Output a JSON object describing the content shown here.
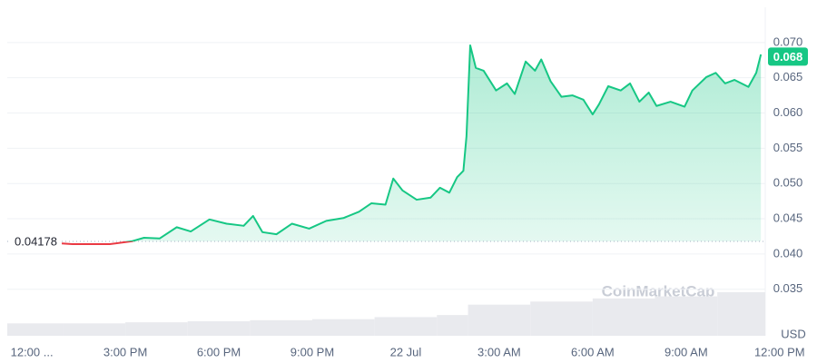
{
  "chart_data": {
    "type": "line",
    "x": [
      0.96,
      1.3,
      1.9,
      2.5,
      3.2,
      3.6,
      4.1,
      4.65,
      5.1,
      5.7,
      6.25,
      6.8,
      7.1,
      7.4,
      7.85,
      8.35,
      8.9,
      9.45,
      10.0,
      10.5,
      10.9,
      11.35,
      11.6,
      11.9,
      12.35,
      12.8,
      13.1,
      13.4,
      13.65,
      13.85,
      13.95,
      14.07,
      14.25,
      14.5,
      14.9,
      15.25,
      15.5,
      15.85,
      16.15,
      16.35,
      16.65,
      17.0,
      17.35,
      17.7,
      18.0,
      18.2,
      18.5,
      18.9,
      19.2,
      19.5,
      19.8,
      20.05,
      20.5,
      20.95,
      21.2,
      21.65,
      21.95,
      22.25,
      22.55,
      23.0,
      23.25,
      23.4
    ],
    "values": [
      0.0415,
      0.0414,
      0.0414,
      0.0414,
      0.0418,
      0.0423,
      0.0422,
      0.0438,
      0.0432,
      0.0449,
      0.0443,
      0.044,
      0.0454,
      0.0431,
      0.0428,
      0.0443,
      0.0436,
      0.0447,
      0.0451,
      0.046,
      0.0472,
      0.047,
      0.0507,
      0.049,
      0.0477,
      0.048,
      0.0494,
      0.0487,
      0.0509,
      0.0518,
      0.0567,
      0.0696,
      0.0664,
      0.066,
      0.0632,
      0.0642,
      0.0627,
      0.0673,
      0.066,
      0.0676,
      0.0645,
      0.0623,
      0.0625,
      0.0619,
      0.0598,
      0.0612,
      0.0638,
      0.0632,
      0.0642,
      0.0616,
      0.0629,
      0.061,
      0.0616,
      0.0609,
      0.0632,
      0.0651,
      0.0657,
      0.0642,
      0.0647,
      0.0637,
      0.0657,
      0.0683
    ],
    "color": "#16c784",
    "down_color": "#ea3943",
    "baseline": 0.04178,
    "last_price": 0.068,
    "volume": {
      "x": [
        -0.79,
        1,
        3,
        5,
        7,
        9,
        11,
        13,
        14,
        16,
        18,
        20,
        22
      ],
      "values": [
        12,
        12,
        13,
        14,
        15,
        16,
        18,
        20,
        30,
        33,
        36,
        38,
        42
      ],
      "color": "#e9eaee"
    },
    "xlim": [
      -0.79,
      23.54
    ],
    "xticks": [
      {
        "value": 0,
        "label": "12:00 ..."
      },
      {
        "value": 3,
        "label": "3:00 PM"
      },
      {
        "value": 6,
        "label": "6:00 PM"
      },
      {
        "value": 9,
        "label": "9:00 PM"
      },
      {
        "value": 12,
        "label": "22 Jul"
      },
      {
        "value": 15,
        "label": "3:00 AM"
      },
      {
        "value": 18,
        "label": "6:00 AM"
      },
      {
        "value": 21,
        "label": "9:00 AM"
      },
      {
        "value": 24,
        "label": "12:00 PM"
      }
    ],
    "ylim": [
      0.0284,
      0.075
    ],
    "yticks": [
      0.035,
      {
        "value": 0.04,
        "label": "0.040"
      },
      0.045,
      {
        "value": 0.05,
        "label": "0.050"
      },
      0.055,
      {
        "value": 0.06,
        "label": "0.060"
      },
      0.065,
      {
        "value": 0.07,
        "label": "0.070"
      }
    ],
    "y_axis_label": "USD",
    "watermark": "CoinMarketCap",
    "grid": true
  }
}
